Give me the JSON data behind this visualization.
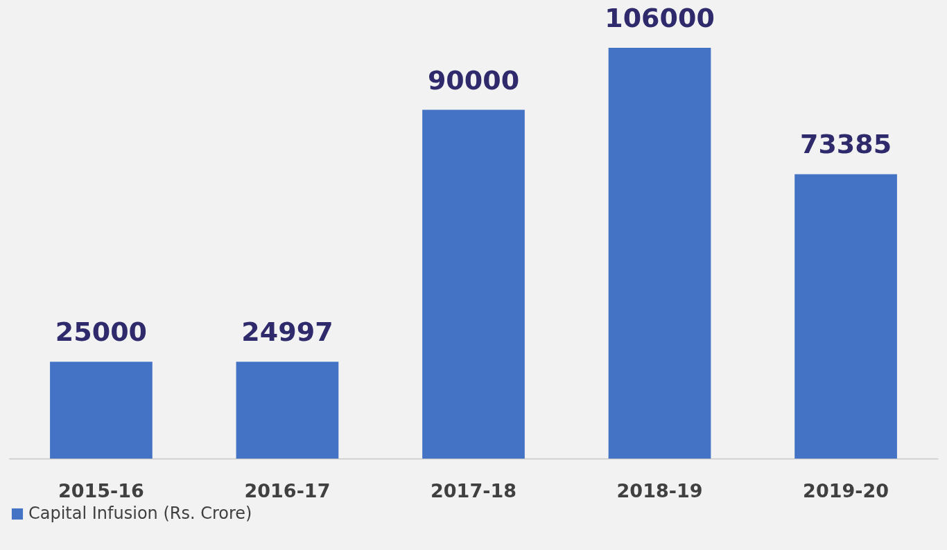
{
  "chart_data": {
    "type": "bar",
    "categories": [
      "2015-16",
      "2016-17",
      "2017-18",
      "2018-19",
      "2019-20"
    ],
    "series": [
      {
        "name": "Capital Infusion (Rs. Crore)",
        "color": "#4472c4",
        "values": [
          25000,
          24997,
          90000,
          106000,
          73385
        ]
      }
    ],
    "data_labels": true,
    "legend": "bottom",
    "grid": false
  }
}
